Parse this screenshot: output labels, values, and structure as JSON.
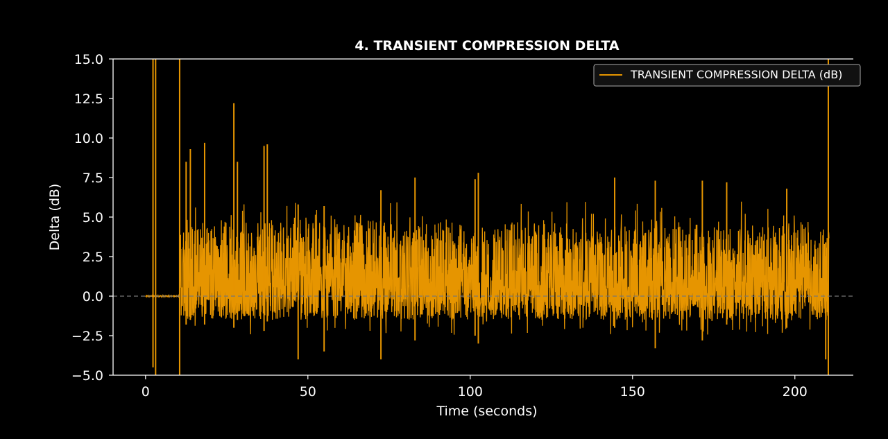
{
  "chart_data": {
    "type": "line",
    "title": "4. TRANSIENT COMPRESSION DELTA",
    "xlabel": "Time (seconds)",
    "ylabel": "Delta (dB)",
    "xlim": [
      -10,
      218
    ],
    "ylim": [
      -5.0,
      15.0
    ],
    "x_ticks": [
      0,
      50,
      100,
      150,
      200
    ],
    "x_tick_labels": [
      "0",
      "50",
      "100",
      "150",
      "200"
    ],
    "y_ticks": [
      -5.0,
      -2.5,
      0.0,
      2.5,
      5.0,
      7.5,
      10.0,
      12.5,
      15.0
    ],
    "y_tick_labels": [
      "−5.0",
      "−2.5",
      "0.0",
      "2.5",
      "5.0",
      "7.5",
      "10.0",
      "12.5",
      "15.0"
    ],
    "reference_line": {
      "y": 0.0,
      "style": "dashed",
      "color": "#777777"
    },
    "legend": {
      "position": "top-right",
      "entries": [
        "TRANSIENT COMPRESSION DELTA (dB)"
      ]
    },
    "grid": false,
    "series": [
      {
        "name": "TRANSIENT COMPRESSION DELTA (dB)",
        "color": "#e69500",
        "x_range": [
          0,
          210.5
        ],
        "typical_band": [
          -1.5,
          3.5
        ],
        "silent_interval": [
          0,
          10.5
        ],
        "spikes": [
          {
            "x": 2.3,
            "y_max": 15.0,
            "y_min": -4.5
          },
          {
            "x": 3.1,
            "y_max": 15.0,
            "y_min": -5.0
          },
          {
            "x": 10.5,
            "y_max": 15.0,
            "y_min": -5.0
          },
          {
            "x": 12.5,
            "y_max": 8.5,
            "y_min": -1.8
          },
          {
            "x": 13.8,
            "y_max": 9.3,
            "y_min": -1.5
          },
          {
            "x": 18.2,
            "y_max": 9.7,
            "y_min": -1.8
          },
          {
            "x": 27.2,
            "y_max": 12.2,
            "y_min": -2.0
          },
          {
            "x": 28.3,
            "y_max": 8.5,
            "y_min": -1.5
          },
          {
            "x": 36.5,
            "y_max": 9.5,
            "y_min": -2.2
          },
          {
            "x": 37.5,
            "y_max": 9.6,
            "y_min": -1.6
          },
          {
            "x": 47.0,
            "y_max": 5.8,
            "y_min": -4.0
          },
          {
            "x": 55.0,
            "y_max": 5.7,
            "y_min": -3.5
          },
          {
            "x": 72.5,
            "y_max": 6.7,
            "y_min": -4.0
          },
          {
            "x": 83.0,
            "y_max": 7.5,
            "y_min": -2.8
          },
          {
            "x": 102.5,
            "y_max": 7.8,
            "y_min": -3.0
          },
          {
            "x": 101.5,
            "y_max": 7.4,
            "y_min": -2.5
          },
          {
            "x": 144.5,
            "y_max": 7.5,
            "y_min": -2.0
          },
          {
            "x": 157.0,
            "y_max": 7.3,
            "y_min": -3.3
          },
          {
            "x": 171.5,
            "y_max": 7.3,
            "y_min": -2.8
          },
          {
            "x": 179.0,
            "y_max": 7.2,
            "y_min": -1.8
          },
          {
            "x": 197.5,
            "y_max": 6.8,
            "y_min": -2.0
          },
          {
            "x": 209.5,
            "y_max": 3.4,
            "y_min": -4.0
          },
          {
            "x": 210.3,
            "y_max": 15.0,
            "y_min": -5.0
          }
        ]
      }
    ]
  }
}
